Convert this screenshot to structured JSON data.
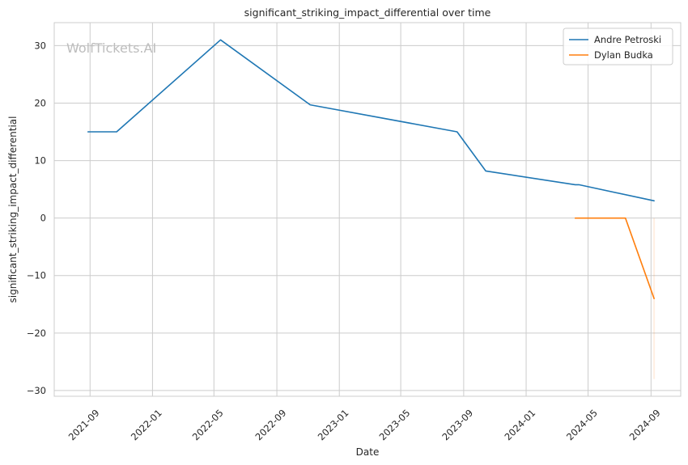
{
  "chart_data": {
    "type": "line",
    "title": "significant_striking_impact_differential over time",
    "xlabel": "Date",
    "ylabel": "significant_striking_impact_differential",
    "watermark": "WolfTickets.AI",
    "grid": true,
    "legend_position": "top-right",
    "x_type": "date",
    "xlim": [
      "2021-06-23",
      "2024-10-29"
    ],
    "ylim": [
      -31,
      34
    ],
    "x_ticks": [
      "2021-09-01",
      "2022-01-01",
      "2022-05-01",
      "2022-09-01",
      "2023-01-01",
      "2023-05-01",
      "2023-09-01",
      "2024-01-01",
      "2024-05-01",
      "2024-09-01"
    ],
    "x_tick_labels": [
      "2021-09",
      "2022-01",
      "2022-05",
      "2022-09",
      "2023-01",
      "2023-05",
      "2023-09",
      "2024-01",
      "2024-05",
      "2024-09"
    ],
    "y_ticks": [
      30,
      20,
      10,
      0,
      -10,
      -20,
      -30
    ],
    "y_tick_labels": [
      "30",
      "20",
      "10",
      "0",
      "−10",
      "−20",
      "−30"
    ],
    "series": [
      {
        "name": "Andre Petroski",
        "color": "#1f77b4",
        "x": [
          "2021-08-28",
          "2021-10-23",
          "2022-05-14",
          "2022-11-05",
          "2023-08-19",
          "2023-10-14",
          "2024-04-06",
          "2024-04-13",
          "2024-09-07"
        ],
        "y": [
          15,
          15,
          31,
          19.7,
          15,
          8.2,
          5.8,
          5.8,
          3
        ]
      },
      {
        "name": "Dylan Budka",
        "color": "#ff7f0e",
        "x": [
          "2024-04-06",
          "2024-07-13",
          "2024-09-07"
        ],
        "y": [
          0,
          0,
          -14
        ]
      }
    ],
    "band": {
      "color": "#ff7f0e",
      "x": "2024-09-07",
      "y_range": [
        -28,
        0
      ]
    }
  }
}
